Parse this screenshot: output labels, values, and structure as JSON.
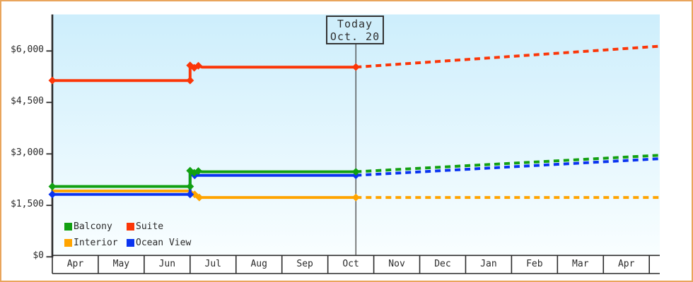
{
  "window": {
    "border_color": "#e9a55c",
    "background_color": "#ffffff",
    "plot_gradient_top": "#cdeefc",
    "plot_gradient_bottom": "#f9feff",
    "axis_color": "#2b2b2b",
    "text_color": "#2a2a2a",
    "today_line_color": "#444444"
  },
  "today_marker": {
    "line1": "Today",
    "line2": "Oct. 20"
  },
  "legend": {
    "items": [
      {
        "label": "Balcony",
        "color": "#12a012"
      },
      {
        "label": "Suite",
        "color": "#fb3608"
      },
      {
        "label": "Interior",
        "color": "#ffa400"
      },
      {
        "label": "Ocean View",
        "color": "#0a34f0"
      }
    ]
  },
  "chart_data": {
    "type": "line",
    "description": "Cabin price history (solid) and forecast (dotted) in USD by month",
    "x_axis": {
      "months": [
        "Apr",
        "May",
        "Jun",
        "Jul",
        "Aug",
        "Sep",
        "Oct",
        "Nov",
        "Dec",
        "Jan",
        "Feb",
        "Mar",
        "Apr"
      ]
    },
    "y_axis": {
      "range": [
        0,
        7030
      ],
      "ticks": [
        {
          "label": "$0",
          "value": 0
        },
        {
          "label": "$1,500",
          "value": 1500
        },
        {
          "label": "$3,000",
          "value": 3000
        },
        {
          "label": "$4,500",
          "value": 4500
        },
        {
          "label": "$6,000",
          "value": 6000
        }
      ]
    },
    "today": {
      "month": "Oct",
      "day": 20,
      "x_month_units": 6.61
    },
    "x_range_month_units": [
      0,
      13.23
    ],
    "grid": false,
    "legend_position": "bottom-left-inside",
    "series": [
      {
        "name": "Balcony",
        "color": "#12a012",
        "history": [
          [
            0,
            2050
          ],
          [
            3,
            2050
          ],
          [
            3,
            2510
          ],
          [
            3.09,
            2450
          ],
          [
            3.18,
            2500
          ],
          [
            3.26,
            2480
          ],
          [
            6.61,
            2480
          ]
        ],
        "forecast": [
          [
            6.61,
            2480
          ],
          [
            13.23,
            2960
          ]
        ],
        "markers": [
          [
            0,
            2050
          ],
          [
            3,
            2050
          ],
          [
            3,
            2510
          ],
          [
            3.09,
            2450
          ],
          [
            3.18,
            2500
          ],
          [
            6.61,
            2480
          ]
        ]
      },
      {
        "name": "Suite",
        "color": "#fb3608",
        "history": [
          [
            0,
            5140
          ],
          [
            3,
            5140
          ],
          [
            3,
            5580
          ],
          [
            3.09,
            5510
          ],
          [
            3.18,
            5570
          ],
          [
            3.26,
            5530
          ],
          [
            6.61,
            5530
          ]
        ],
        "forecast": [
          [
            6.61,
            5530
          ],
          [
            13.23,
            6140
          ]
        ],
        "markers": [
          [
            0,
            5140
          ],
          [
            3,
            5140
          ],
          [
            3,
            5580
          ],
          [
            3.09,
            5510
          ],
          [
            3.18,
            5570
          ],
          [
            6.61,
            5530
          ]
        ]
      },
      {
        "name": "Interior",
        "color": "#ffa400",
        "history": [
          [
            0,
            1920
          ],
          [
            3,
            1920
          ],
          [
            3.1,
            1820
          ],
          [
            3.2,
            1730
          ],
          [
            6.61,
            1730
          ]
        ],
        "forecast": [
          [
            6.61,
            1730
          ],
          [
            13.23,
            1730
          ]
        ],
        "markers": [
          [
            3.1,
            1820
          ],
          [
            3.2,
            1730
          ],
          [
            6.61,
            1730
          ]
        ]
      },
      {
        "name": "Ocean View",
        "color": "#0a34f0",
        "history": [
          [
            0,
            1820
          ],
          [
            3,
            1820
          ],
          [
            3,
            2400
          ],
          [
            3.1,
            2375
          ],
          [
            6.61,
            2375
          ]
        ],
        "forecast": [
          [
            6.61,
            2375
          ],
          [
            13.23,
            2860
          ]
        ],
        "markers": [
          [
            0,
            1820
          ],
          [
            3,
            1820
          ],
          [
            3.1,
            2375
          ],
          [
            6.61,
            2375
          ]
        ]
      }
    ],
    "draw_order": [
      "Interior",
      "Ocean View",
      "Balcony",
      "Suite"
    ]
  }
}
